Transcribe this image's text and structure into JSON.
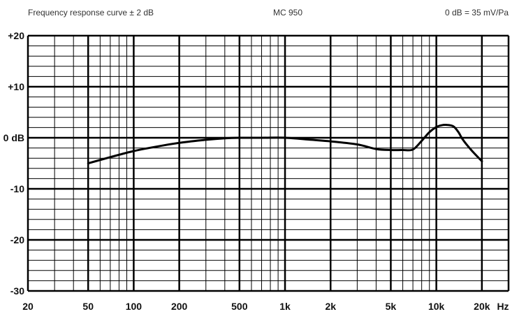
{
  "header": {
    "left": "Frequency response curve ± 2 dB",
    "center": "MC 950",
    "right": "0 dB = 35 mV/Pa"
  },
  "chart_data": {
    "type": "line",
    "title": "MC 950",
    "subtitle": "Frequency response curve ± 2 dB",
    "reference_note": "0 dB = 35 mV/Pa",
    "x_scale": "log",
    "xlim": [
      20,
      30000
    ],
    "ylim": [
      -30,
      20
    ],
    "x_unit_label": "Hz",
    "x_ticks": [
      {
        "value": 20,
        "label": "20"
      },
      {
        "value": 50,
        "label": "50"
      },
      {
        "value": 100,
        "label": "100"
      },
      {
        "value": 200,
        "label": "200"
      },
      {
        "value": 500,
        "label": "500"
      },
      {
        "value": 1000,
        "label": "1k"
      },
      {
        "value": 2000,
        "label": "2k"
      },
      {
        "value": 5000,
        "label": "5k"
      },
      {
        "value": 10000,
        "label": "10k"
      },
      {
        "value": 20000,
        "label": "20k"
      }
    ],
    "y_ticks": [
      {
        "value": 20,
        "label": "+20"
      },
      {
        "value": 10,
        "label": "+10"
      },
      {
        "value": 0,
        "label": "0 dB"
      },
      {
        "value": -10,
        "label": "-10"
      },
      {
        "value": -20,
        "label": "-20"
      },
      {
        "value": -30,
        "label": "-30"
      }
    ],
    "grid": true,
    "series": [
      {
        "x": [
          50,
          70,
          100,
          150,
          200,
          300,
          400,
          500,
          700,
          1000,
          1500,
          2000,
          3000,
          4000,
          5000,
          6000,
          7000,
          8000,
          9000,
          10000,
          11000,
          12000,
          13000,
          14000,
          15000,
          17000,
          20000
        ],
        "y": [
          -5,
          -3.8,
          -2.6,
          -1.6,
          -1,
          -0.4,
          -0.1,
          0,
          0,
          0,
          -0.4,
          -0.7,
          -1.3,
          -2.2,
          -2.4,
          -2.4,
          -2.3,
          -0.6,
          1.1,
          2.1,
          2.5,
          2.5,
          2.2,
          1.1,
          -0.4,
          -2.4,
          -4.6
        ]
      }
    ]
  }
}
